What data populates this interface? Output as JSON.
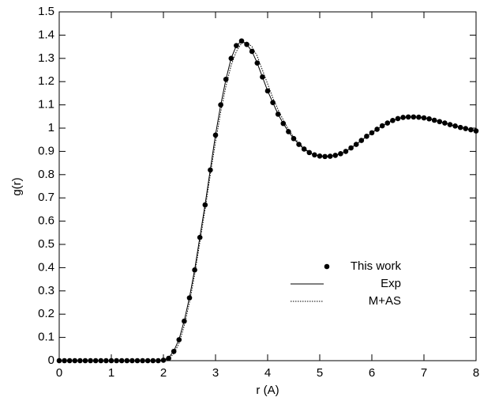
{
  "chart_data": {
    "type": "line",
    "xlabel": "r (A)",
    "ylabel": "g(r)",
    "x": [
      0,
      0.1,
      0.2,
      0.3,
      0.4,
      0.5,
      0.6,
      0.7,
      0.8,
      0.9,
      1,
      1.1,
      1.2,
      1.3,
      1.4,
      1.5,
      1.6,
      1.7,
      1.8,
      1.9,
      2,
      2.1,
      2.2,
      2.3,
      2.4,
      2.5,
      2.6,
      2.7,
      2.8,
      2.9,
      3,
      3.1,
      3.2,
      3.3,
      3.4,
      3.5,
      3.6,
      3.7,
      3.8,
      3.9,
      4,
      4.1,
      4.2,
      4.3,
      4.4,
      4.5,
      4.6,
      4.7,
      4.8,
      4.9,
      5,
      5.1,
      5.2,
      5.3,
      5.4,
      5.5,
      5.6,
      5.7,
      5.8,
      5.9,
      6,
      6.1,
      6.2,
      6.3,
      6.4,
      6.5,
      6.6,
      6.7,
      6.8,
      6.9,
      7,
      7.1,
      7.2,
      7.3,
      7.4,
      7.5,
      7.6,
      7.7,
      7.8,
      7.9,
      8
    ],
    "series": [
      {
        "name": "This work",
        "style": "points",
        "color": "#000000",
        "values": [
          0,
          0,
          0,
          0,
          0,
          0,
          0,
          0,
          0,
          0,
          0,
          0,
          0,
          0,
          0,
          0,
          0,
          0,
          0,
          0,
          0.002,
          0.01,
          0.04,
          0.09,
          0.17,
          0.27,
          0.39,
          0.53,
          0.67,
          0.82,
          0.97,
          1.1,
          1.21,
          1.3,
          1.355,
          1.375,
          1.36,
          1.33,
          1.28,
          1.22,
          1.16,
          1.11,
          1.06,
          1.02,
          0.985,
          0.955,
          0.93,
          0.91,
          0.895,
          0.885,
          0.88,
          0.878,
          0.879,
          0.883,
          0.89,
          0.9,
          0.915,
          0.93,
          0.947,
          0.965,
          0.98,
          0.995,
          1.01,
          1.022,
          1.033,
          1.041,
          1.046,
          1.048,
          1.048,
          1.047,
          1.044,
          1.04,
          1.034,
          1.028,
          1.022,
          1.015,
          1.009,
          1.003,
          0.998,
          0.993,
          0.988
        ]
      },
      {
        "name": "Exp",
        "style": "solid",
        "color": "#000000",
        "values": [
          0,
          0,
          0,
          0,
          0,
          0,
          0,
          0,
          0,
          0,
          0,
          0,
          0,
          0,
          0,
          0,
          0,
          0,
          0,
          0,
          0.003,
          0.012,
          0.042,
          0.092,
          0.172,
          0.272,
          0.392,
          0.532,
          0.672,
          0.822,
          0.972,
          1.1,
          1.21,
          1.3,
          1.355,
          1.375,
          1.36,
          1.33,
          1.28,
          1.22,
          1.16,
          1.11,
          1.06,
          1.02,
          0.985,
          0.955,
          0.93,
          0.91,
          0.895,
          0.885,
          0.88,
          0.878,
          0.879,
          0.883,
          0.89,
          0.9,
          0.915,
          0.93,
          0.947,
          0.965,
          0.98,
          0.995,
          1.01,
          1.022,
          1.033,
          1.041,
          1.046,
          1.048,
          1.048,
          1.047,
          1.044,
          1.04,
          1.034,
          1.028,
          1.022,
          1.015,
          1.009,
          1.003,
          0.998,
          0.993,
          0.988
        ]
      },
      {
        "name": "M+AS",
        "style": "dotted",
        "color": "#000000",
        "values": [
          0,
          0,
          0,
          0,
          0,
          0,
          0,
          0,
          0,
          0,
          0,
          0,
          0,
          0,
          0,
          0,
          0,
          0,
          0,
          0,
          0.002,
          0.008,
          0.03,
          0.075,
          0.15,
          0.25,
          0.37,
          0.51,
          0.65,
          0.8,
          0.94,
          1.07,
          1.18,
          1.27,
          1.33,
          1.365,
          1.37,
          1.35,
          1.31,
          1.25,
          1.19,
          1.13,
          1.08,
          1.035,
          0.995,
          0.962,
          0.935,
          0.913,
          0.897,
          0.886,
          0.88,
          0.878,
          0.879,
          0.883,
          0.89,
          0.9,
          0.915,
          0.93,
          0.947,
          0.965,
          0.98,
          0.995,
          1.01,
          1.022,
          1.033,
          1.041,
          1.046,
          1.048,
          1.048,
          1.047,
          1.044,
          1.04,
          1.034,
          1.028,
          1.022,
          1.015,
          1.009,
          1.003,
          0.998,
          0.993,
          0.988
        ]
      }
    ],
    "xlim": [
      0,
      8
    ],
    "xticks": [
      0,
      1,
      2,
      3,
      4,
      5,
      6,
      7,
      8
    ],
    "ylim": [
      0,
      1.5
    ],
    "yticks": [
      0,
      0.1,
      0.2,
      0.3,
      0.4,
      0.5,
      0.6,
      0.7,
      0.8,
      0.9,
      1,
      1.1,
      1.2,
      1.3,
      1.4,
      1.5
    ],
    "legend": "right"
  }
}
